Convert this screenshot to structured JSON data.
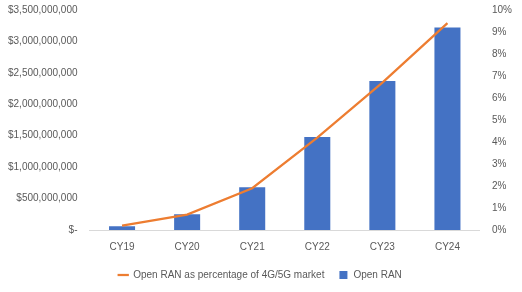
{
  "chart_data": {
    "type": "bar",
    "categories": [
      "CY19",
      "CY20",
      "CY21",
      "CY22",
      "CY23",
      "CY24"
    ],
    "series": [
      {
        "name": "Open RAN",
        "type": "bar",
        "color": "#4472c4",
        "values": [
          60000000,
          250000000,
          680000000,
          1480000000,
          2370000000,
          3220000000
        ]
      },
      {
        "name": "Open RAN as percentage of 4G/5G market",
        "type": "line",
        "color": "#ed7d31",
        "axis": "y2",
        "values": [
          0.2,
          0.7,
          1.9,
          4.2,
          6.7,
          9.4
        ]
      }
    ],
    "ylim": [
      0,
      3500000000
    ],
    "yticks": [
      {
        "value": 0,
        "label": "$-"
      },
      {
        "value": 500000000,
        "label": "$500,000,000"
      },
      {
        "value": 1000000000,
        "label": "$1,000,000,000"
      },
      {
        "value": 1500000000,
        "label": "$1,500,000,000"
      },
      {
        "value": 2000000000,
        "label": "$2,000,000,000"
      },
      {
        "value": 2500000000,
        "label": "$2,500,000,000"
      },
      {
        "value": 3000000000,
        "label": "$3,000,000,000"
      },
      {
        "value": 3500000000,
        "label": "$3,500,000,000"
      }
    ],
    "y2lim": [
      0,
      10
    ],
    "y2ticks": [
      {
        "value": 0,
        "label": "0%"
      },
      {
        "value": 1,
        "label": "1%"
      },
      {
        "value": 2,
        "label": "2%"
      },
      {
        "value": 3,
        "label": "3%"
      },
      {
        "value": 4,
        "label": "4%"
      },
      {
        "value": 5,
        "label": "5%"
      },
      {
        "value": 6,
        "label": "6%"
      },
      {
        "value": 7,
        "label": "7%"
      },
      {
        "value": 8,
        "label": "8%"
      },
      {
        "value": 9,
        "label": "9%"
      },
      {
        "value": 10,
        "label": "10%"
      }
    ],
    "grid": false,
    "legend": "bottom"
  }
}
